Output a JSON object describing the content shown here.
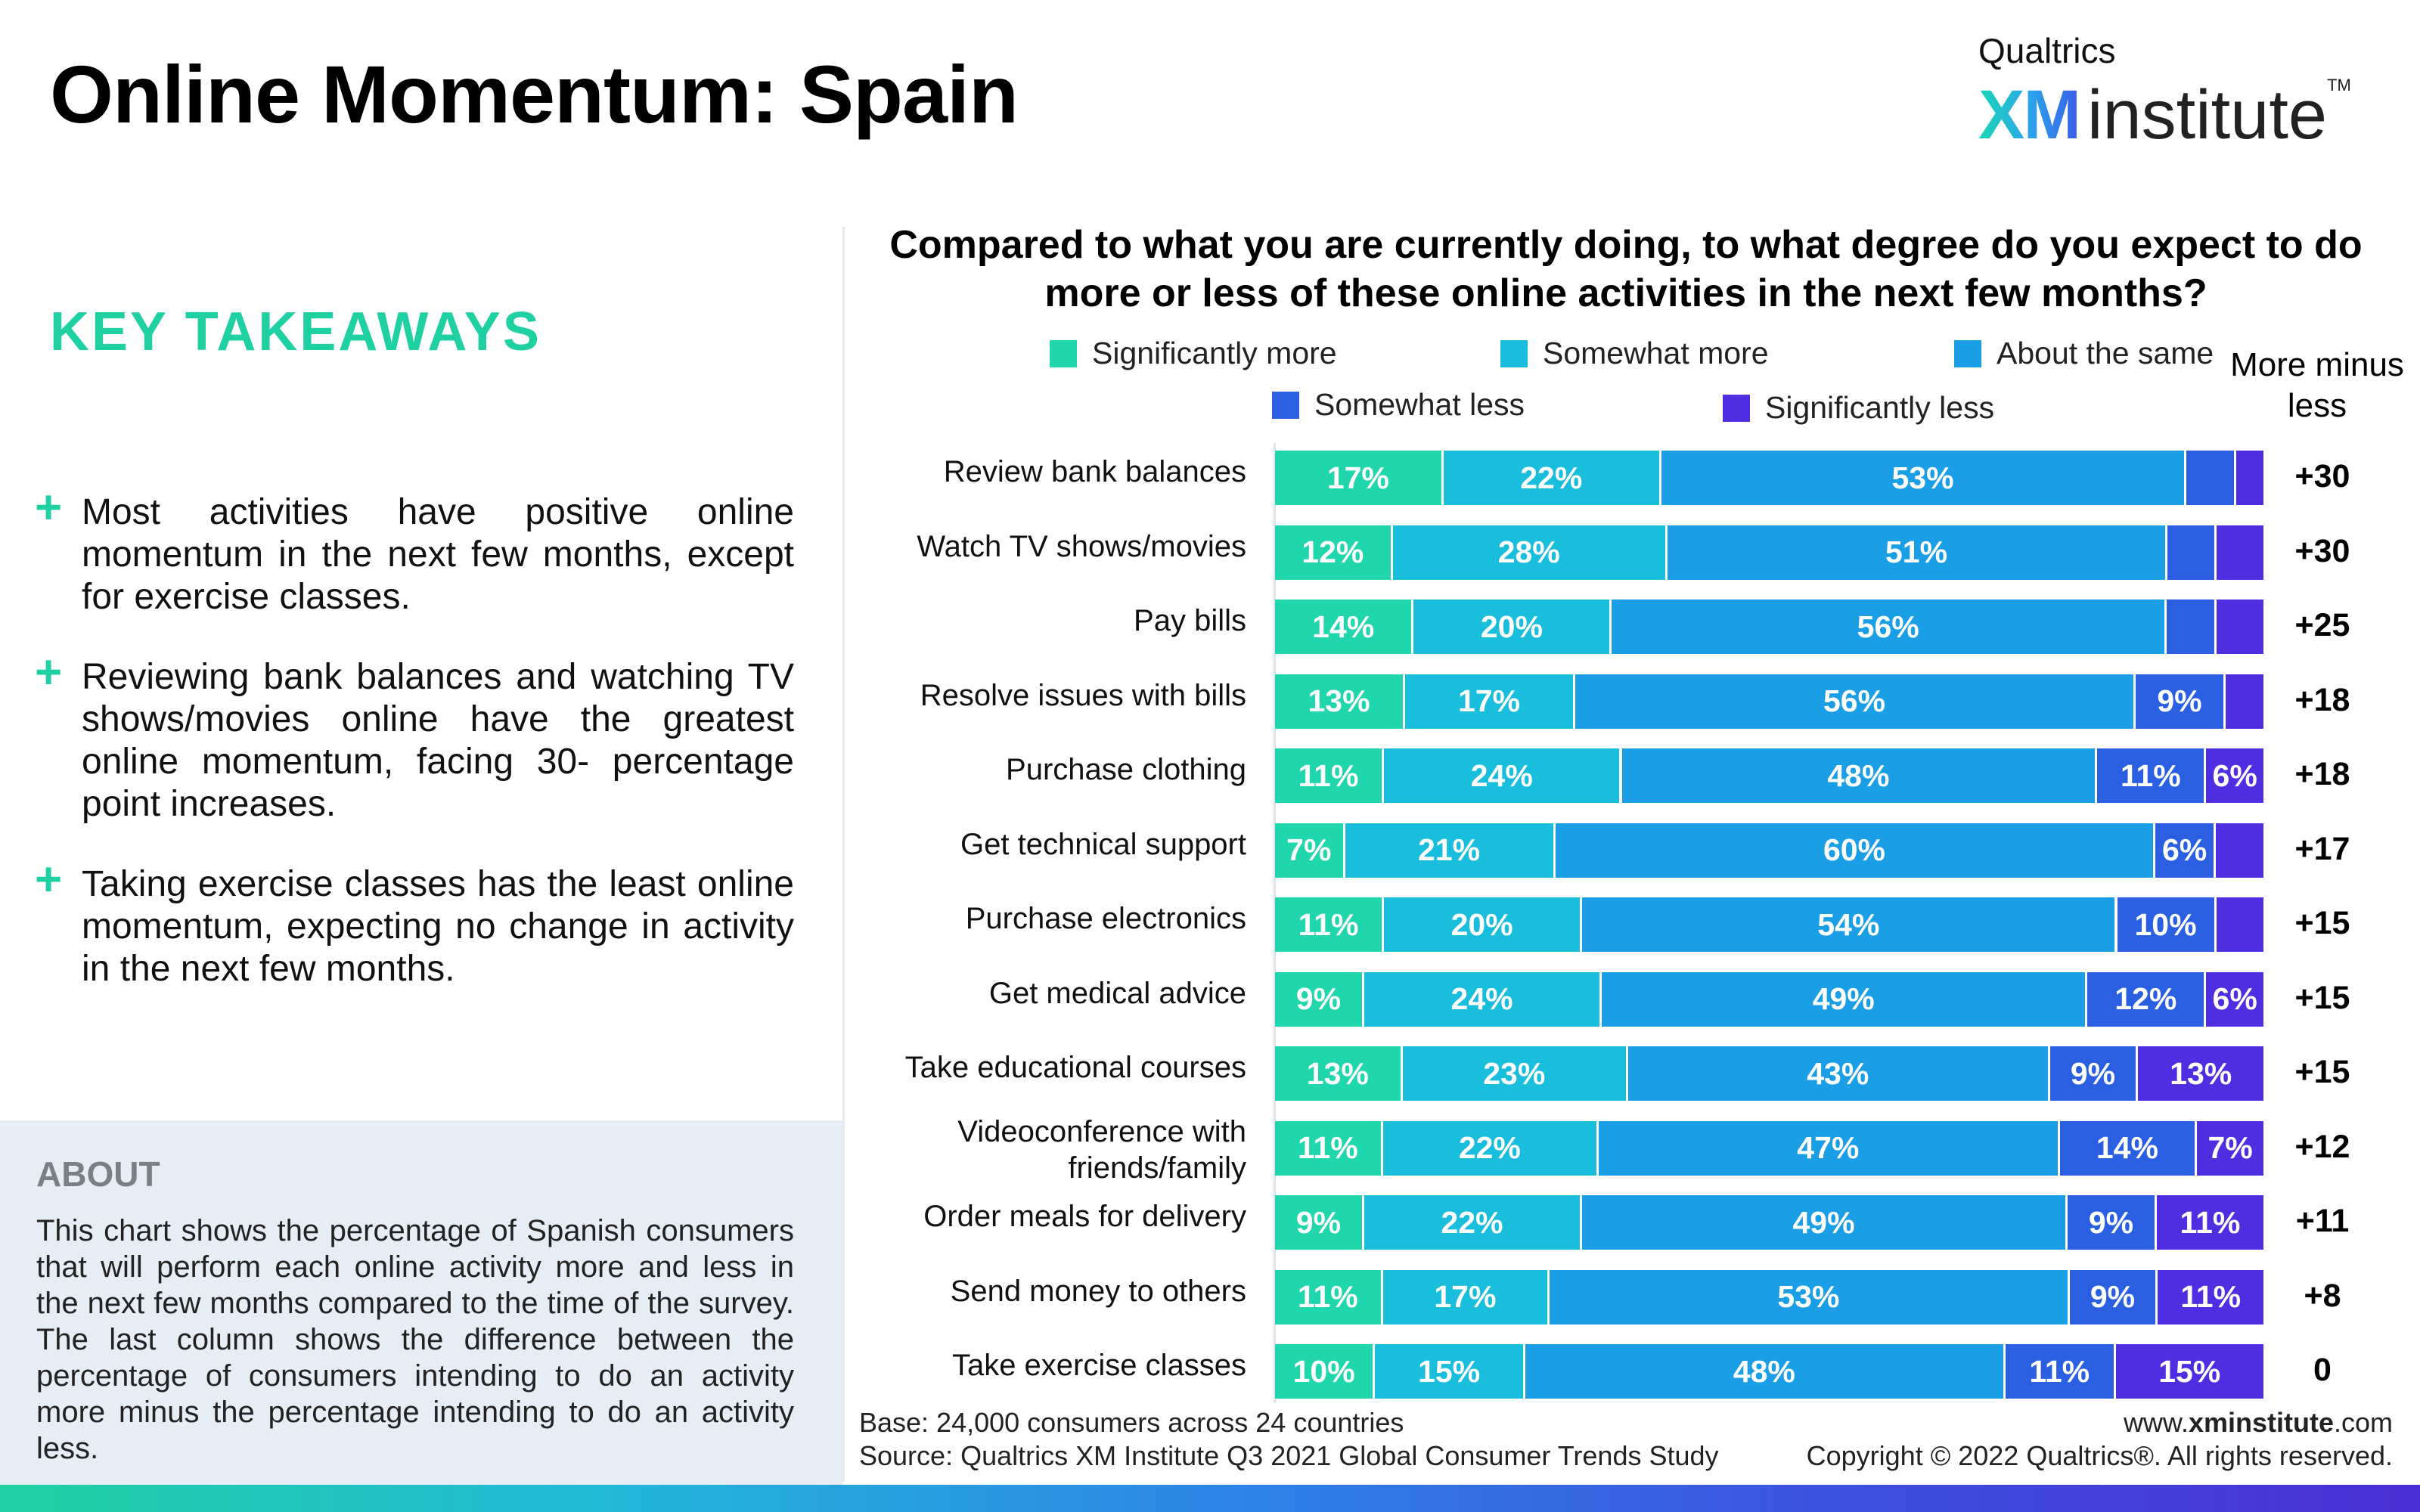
{
  "title": "Online Momentum: Spain",
  "logo": {
    "brand": "Qualtrics",
    "xm": "XM",
    "institute": "institute",
    "tm": "TM"
  },
  "key_takeaways": {
    "heading": "KEY TAKEAWAYS",
    "bullets": [
      "Most activities have positive online momentum in the next few months, except for exercise classes.",
      "Reviewing bank balances and watching TV shows/movies online have the greatest online momentum, facing 30- percentage point increases.",
      "Taking exercise classes has the least online momentum, expecting no change in activity in the next few months."
    ]
  },
  "about": {
    "heading": "ABOUT",
    "text": "This chart shows the percentage of Spanish consumers that will perform each online activity more and less in the next few months compared to the time of the survey. The last column shows the difference between the percentage of consumers intending to do an activity more minus the percentage intending to do an activity less."
  },
  "footer": {
    "base": "Base: 24,000 consumers across 24 countries",
    "source": "Source: Qualtrics XM Institute Q3 2021 Global Consumer Trends Study",
    "url_prefix": "www.",
    "url_bold": "xminstitute",
    "url_suffix": ".com",
    "copyright": "Copyright © 2022 Qualtrics®. All rights reserved."
  },
  "chart_data": {
    "type": "bar",
    "stacked": true,
    "orientation": "horizontal",
    "title": "Compared to what you are currently doing, to what degree do you expect to do more or less of these online activities in the next few months?",
    "net_header": "More minus less",
    "categories": [
      "Review bank balances",
      "Watch TV shows/movies",
      "Pay bills",
      "Resolve issues with bills",
      "Purchase clothing",
      "Get technical support",
      "Purchase electronics",
      "Get medical advice",
      "Take educational courses",
      "Videoconference with friends/family",
      "Order meals for delivery",
      "Send money to others",
      "Take exercise classes"
    ],
    "series": [
      {
        "name": "Significantly more",
        "color": "#1fd6ad",
        "values": [
          17,
          12,
          14,
          13,
          11,
          7,
          11,
          9,
          13,
          11,
          9,
          11,
          10
        ]
      },
      {
        "name": "Somewhat more",
        "color": "#18bedb",
        "values": [
          22,
          28,
          20,
          17,
          24,
          21,
          20,
          24,
          23,
          22,
          22,
          17,
          15
        ]
      },
      {
        "name": "About the same",
        "color": "#1a9fe6",
        "values": [
          53,
          51,
          56,
          56,
          48,
          60,
          54,
          49,
          43,
          47,
          49,
          53,
          48
        ]
      },
      {
        "name": "Somewhat less",
        "color": "#2a5fe2",
        "values": [
          5,
          5,
          5,
          9,
          11,
          6,
          10,
          12,
          9,
          14,
          9,
          9,
          11
        ]
      },
      {
        "name": "Significantly less",
        "color": "#4e2ee0",
        "values": [
          3,
          5,
          5,
          4,
          6,
          5,
          5,
          6,
          13,
          7,
          11,
          11,
          15
        ]
      }
    ],
    "net": [
      "+30",
      "+30",
      "+25",
      "+18",
      "+18",
      "+17",
      "+15",
      "+15",
      "+15",
      "+12",
      "+11",
      "+8",
      "0"
    ],
    "label_min": 6,
    "xlim": [
      0,
      100
    ]
  }
}
